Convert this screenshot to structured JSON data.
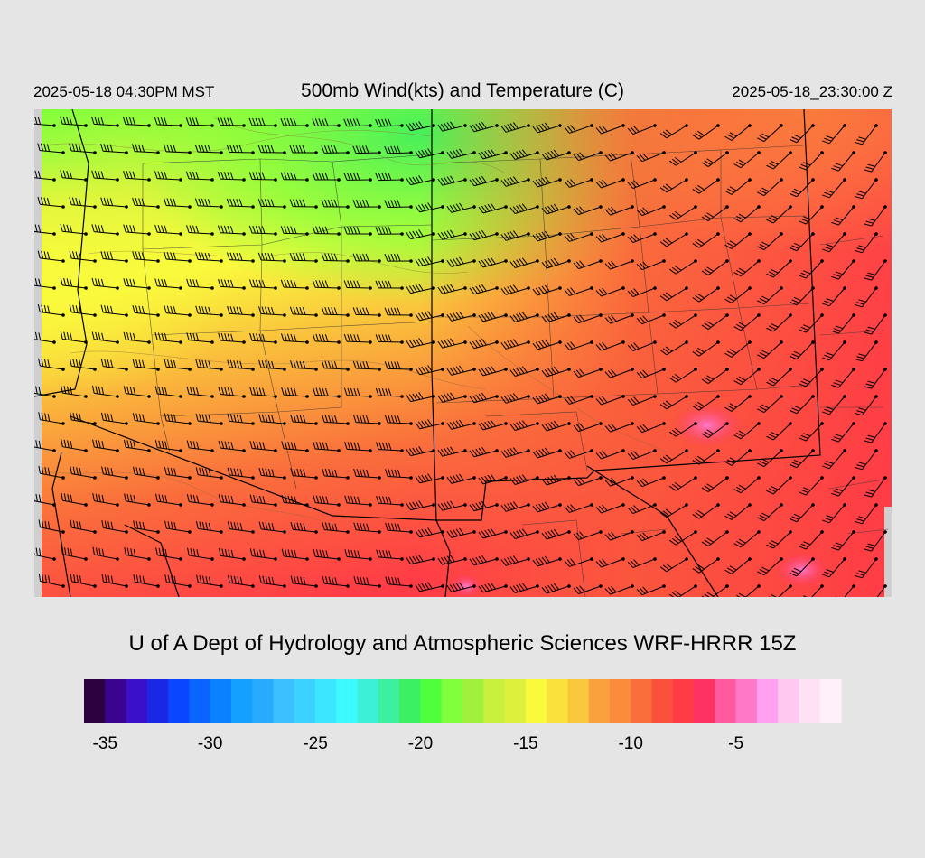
{
  "header": {
    "local_time": "2025-05-18 04:30PM MST",
    "title": "500mb Wind(kts) and Temperature (C)",
    "valid_time": "2025-05-18_23:30:00 Z"
  },
  "footer": {
    "credit": "U of A Dept of Hydrology and Atmospheric Sciences WRF-HRRR 15Z"
  },
  "colorbar": {
    "colors": [
      "#2d0040",
      "#3a0390",
      "#3a10c8",
      "#1a28e6",
      "#0a46ff",
      "#0a64ff",
      "#0a82ff",
      "#14a0ff",
      "#28aaff",
      "#3cc0ff",
      "#3cd2ff",
      "#3ce6ff",
      "#3cfaff",
      "#3cf0d8",
      "#3cf0a0",
      "#3cf064",
      "#50ff3c",
      "#82ff3c",
      "#a0f03c",
      "#c8f03c",
      "#dcf03c",
      "#fafa3c",
      "#fae13c",
      "#fac83c",
      "#faa03c",
      "#fa8c3c",
      "#fa6e3c",
      "#fa503c",
      "#ff3c46",
      "#ff3264",
      "#ff5aa0",
      "#ff78c8",
      "#ffa0f0",
      "#ffc8f0",
      "#ffe1f5",
      "#fff0fa"
    ],
    "tick_labels": [
      "-35",
      "-30",
      "-25",
      "-20",
      "-15",
      "-10",
      "-5"
    ]
  }
}
